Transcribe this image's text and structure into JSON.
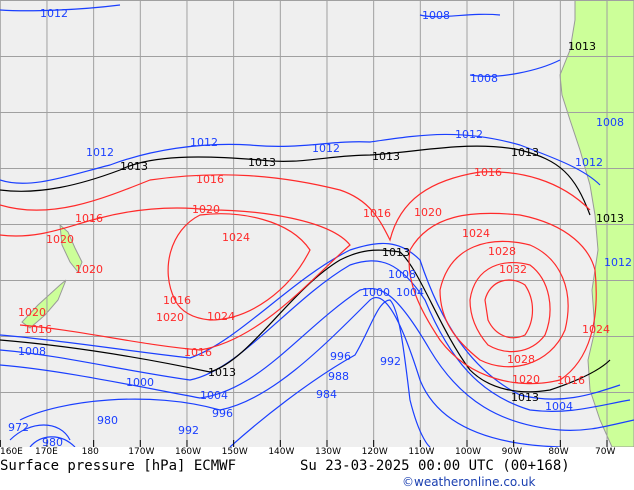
{
  "title_left": "Surface pressure [hPa] ECMWF",
  "title_right": "Su 23-03-2025 00:00 UTC (00+168)",
  "credit": "©weatheronline.co.uk",
  "colors": {
    "ocean": "#efefef",
    "land": "#ccff99",
    "low": "#1a3fff",
    "high": "#ff2a2a",
    "ref": "#000000",
    "grid": "#a0a0a0"
  },
  "longitude_labels": [
    "160E",
    "170E",
    "180",
    "170W",
    "160W",
    "150W",
    "140W",
    "130W",
    "120W",
    "110W",
    "100W",
    "90W",
    "80W",
    "70W"
  ],
  "contour_labels": {
    "blue": [
      "1012",
      "1008",
      "1008",
      "1012",
      "1012",
      "1012",
      "1008",
      "1012",
      "1008",
      "1004",
      "1004",
      "1000",
      "996",
      "992",
      "988",
      "984",
      "996",
      "992",
      "980",
      "972",
      "980",
      "1004",
      "1000",
      "1012",
      "1008",
      "1012"
    ],
    "black": [
      "1013",
      "1013",
      "1013",
      "1013",
      "1013",
      "1013",
      "1013",
      "1013",
      "1013"
    ],
    "red": [
      "1016",
      "1016",
      "1016",
      "1016",
      "1020",
      "1024",
      "1020",
      "1020",
      "1020",
      "1016",
      "1020",
      "1024",
      "1024",
      "1028",
      "1032",
      "1028",
      "1020",
      "1016",
      "1016",
      "1020",
      "1016",
      "1024"
    ]
  }
}
